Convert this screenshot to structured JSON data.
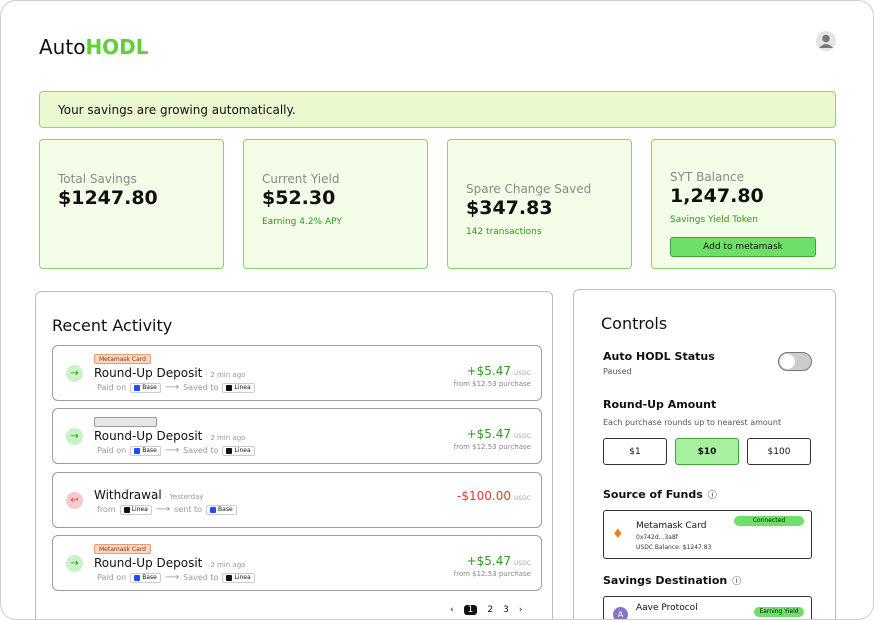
{
  "header": {
    "brand_prefix": "Auto",
    "brand_suffix": "HODL"
  },
  "banner": "Your savings are growing automatically.",
  "stats": [
    {
      "label": "Total Savings",
      "value": "$1247.80"
    },
    {
      "label": "Current Yield",
      "value": "$52.30",
      "note": "Earning 4.2% APY"
    },
    {
      "label": "Spare Change Saved",
      "value": "$347.83",
      "note": "142 transactions"
    },
    {
      "label": "SYT Balance",
      "value": "1,247.80",
      "note": "Savings Yield Token",
      "button": "Add to metamask"
    }
  ],
  "activity": {
    "title": "Recent Activity",
    "items": [
      {
        "tag": "Metamask Card",
        "title": "Round-Up Deposit",
        "time": "2 min ago",
        "from_label": "Paid on",
        "from": "Base",
        "from_color": "#1d4ff5",
        "to_label": "Saved to",
        "to": "Linea",
        "to_color": "#111111",
        "amount": "+$5.47",
        "unit": "USDC",
        "sub": "from $12.53 purchase"
      },
      {
        "tag": null,
        "title": "Round-Up Deposit",
        "time": "2 min ago",
        "from_label": "Paid on",
        "from": "Base",
        "from_color": "#1d4ff5",
        "to_label": "Saved to",
        "to": "Linea",
        "to_color": "#111111",
        "amount": "+$5.47",
        "unit": "USDC",
        "sub": "from $12.53 purchase"
      },
      {
        "title": "Withdrawal",
        "time": "Yesterday",
        "from_label": "from",
        "from": "Linea",
        "from_color": "#111111",
        "to_label": "sent to",
        "to": "Base",
        "to_color": "#1d4ff5",
        "amount": "-$100.00",
        "unit": "USDC"
      },
      {
        "tag": "Metamask Card",
        "title": "Round-Up Deposit",
        "time": "2 min ago",
        "from_label": "Paid on",
        "from": "Base",
        "from_color": "#1d4ff5",
        "to_label": "Saved to",
        "to": "Linea",
        "to_color": "#111111",
        "amount": "+$5.47",
        "unit": "USDC",
        "sub": "from $12.53 purchase"
      }
    ],
    "pages": [
      "1",
      "2",
      "3"
    ],
    "current_page": 0
  },
  "controls": {
    "title": "Controls",
    "status_label": "Auto HODL Status",
    "status": "Paused",
    "roundup_title": "Round-Up Amount",
    "roundup_desc": "Each purchase rounds up to nearest amount",
    "options": [
      "$1",
      "$10",
      "$100"
    ],
    "selected": 1,
    "source_title": "Source of Funds",
    "source": {
      "name": "Metamask Card",
      "address": "0x742d...3a8f",
      "balance": "USDC Balance: $1247.83",
      "badge": "Connected"
    },
    "dest_title": "Savings Destination",
    "dest": {
      "name": "Aave Protocol",
      "badge": "Earning Yield"
    }
  }
}
